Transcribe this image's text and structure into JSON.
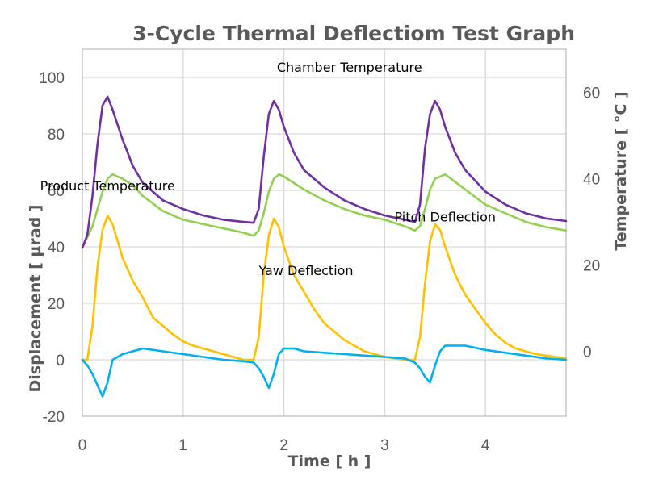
{
  "chart_data": {
    "type": "line",
    "title": "3-Cycle Thermal Deflectiom Test Graph",
    "xlabel": "Time [ h ]",
    "ylabel": "Displacement [ µrad ]",
    "y2label": "Temperature [ °C ]",
    "xlim": [
      0,
      4.8
    ],
    "ylim": [
      -20,
      110
    ],
    "y2lim": [
      -15,
      70
    ],
    "x_ticks": [
      "0",
      "1",
      "2",
      "3",
      "4"
    ],
    "y_ticks": [
      "-20",
      "0",
      "20",
      "40",
      "60",
      "80",
      "100"
    ],
    "y2_ticks": [
      "0",
      "20",
      "40",
      "60"
    ],
    "grid": true,
    "annotations": [
      {
        "text": "Chamber  Temperature",
        "x": 2.65,
        "y": 102
      },
      {
        "text": "Product Temperature",
        "x": 0.25,
        "y": 60
      },
      {
        "text": "Pitch Deflection",
        "x": 3.6,
        "y": 49
      },
      {
        "text": "Yaw Deflection",
        "x": 2.22,
        "y": 30
      }
    ],
    "series": [
      {
        "label": "Chamber  Temperature",
        "axis": "right",
        "color": "#7030a0",
        "x": [
          0,
          0.05,
          0.1,
          0.15,
          0.2,
          0.25,
          0.3,
          0.4,
          0.5,
          0.6,
          0.8,
          1.0,
          1.2,
          1.4,
          1.6,
          1.7,
          1.75,
          1.8,
          1.85,
          1.9,
          1.95,
          2.0,
          2.1,
          2.2,
          2.4,
          2.6,
          2.8,
          3.0,
          3.2,
          3.3,
          3.35,
          3.4,
          3.45,
          3.5,
          3.55,
          3.6,
          3.7,
          3.8,
          4.0,
          4.2,
          4.4,
          4.6,
          4.8
        ],
        "y": [
          24,
          27,
          36,
          48,
          57,
          59,
          56,
          49,
          43,
          39,
          35,
          33,
          31.5,
          30.5,
          30,
          29.8,
          33,
          45,
          55,
          58,
          56,
          52,
          46,
          42,
          38,
          35,
          33,
          31.5,
          30.5,
          30,
          34,
          47,
          55,
          58,
          56,
          52,
          46,
          42,
          37,
          34,
          32,
          30.8,
          30.2
        ]
      },
      {
        "label": "Product Temperature",
        "axis": "right",
        "color": "#92d050",
        "x": [
          0,
          0.1,
          0.2,
          0.25,
          0.3,
          0.4,
          0.5,
          0.6,
          0.8,
          1.0,
          1.2,
          1.4,
          1.6,
          1.7,
          1.75,
          1.8,
          1.85,
          1.9,
          1.95,
          2.0,
          2.2,
          2.4,
          2.6,
          2.8,
          3.0,
          3.2,
          3.3,
          3.35,
          3.4,
          3.45,
          3.5,
          3.6,
          3.8,
          4.0,
          4.2,
          4.4,
          4.6,
          4.8
        ],
        "y": [
          24,
          29,
          37,
          40,
          41,
          40,
          38.5,
          36,
          32.5,
          30.5,
          29.5,
          28.5,
          27.5,
          26.8,
          28,
          32,
          37,
          40,
          41,
          40.5,
          37.5,
          35,
          33,
          31.5,
          30.5,
          29,
          28,
          29,
          33,
          37.5,
          40,
          41,
          37.5,
          34,
          32,
          30,
          28.8,
          28
        ]
      },
      {
        "label": "Pitch Deflection",
        "axis": "left",
        "color": "#ffc000",
        "x": [
          0,
          0.05,
          0.1,
          0.15,
          0.2,
          0.25,
          0.3,
          0.35,
          0.4,
          0.5,
          0.6,
          0.7,
          0.8,
          0.9,
          1.0,
          1.1,
          1.2,
          1.3,
          1.4,
          1.5,
          1.6,
          1.65,
          1.7,
          1.75,
          1.8,
          1.85,
          1.9,
          1.95,
          2.0,
          2.1,
          2.2,
          2.3,
          2.4,
          2.5,
          2.6,
          2.7,
          2.8,
          2.9,
          3.0,
          3.1,
          3.2,
          3.25,
          3.3,
          3.35,
          3.4,
          3.45,
          3.5,
          3.55,
          3.6,
          3.7,
          3.8,
          3.9,
          4.0,
          4.1,
          4.2,
          4.3,
          4.4,
          4.5,
          4.6,
          4.7,
          4.8
        ],
        "y": [
          0,
          0,
          12,
          33,
          46,
          51,
          48,
          42,
          36,
          28,
          22,
          15,
          12,
          9,
          6.5,
          5,
          4,
          3,
          2,
          1,
          0,
          0,
          0,
          8,
          30,
          44,
          50,
          47,
          40,
          30,
          24,
          18,
          13,
          10,
          7,
          5,
          3,
          2,
          1,
          0.5,
          0,
          0,
          0,
          8,
          27,
          42,
          48,
          46,
          40,
          30,
          23,
          18,
          13,
          9,
          6,
          4,
          3,
          2,
          1.5,
          1,
          0.5
        ]
      },
      {
        "label": "Yaw Deflection",
        "axis": "left",
        "color": "#00b0f0",
        "x": [
          0,
          0.05,
          0.1,
          0.15,
          0.2,
          0.25,
          0.3,
          0.4,
          0.5,
          0.6,
          0.8,
          1.0,
          1.2,
          1.4,
          1.6,
          1.7,
          1.75,
          1.8,
          1.85,
          1.9,
          1.95,
          2.0,
          2.1,
          2.2,
          2.4,
          2.6,
          2.8,
          3.0,
          3.2,
          3.3,
          3.35,
          3.4,
          3.45,
          3.5,
          3.55,
          3.6,
          3.7,
          3.8,
          4.0,
          4.2,
          4.4,
          4.6,
          4.8
        ],
        "y": [
          0,
          -2,
          -5,
          -9,
          -13,
          -8,
          0,
          2,
          3,
          4,
          3,
          2,
          1,
          0,
          -0.5,
          -1,
          -3,
          -6,
          -10,
          -5,
          2,
          4,
          4,
          3,
          2.5,
          2,
          1.5,
          1,
          0.5,
          -1,
          -3,
          -6,
          -8,
          -2,
          3,
          5,
          5,
          5,
          3.5,
          2.5,
          1.5,
          0.5,
          0
        ]
      }
    ]
  }
}
